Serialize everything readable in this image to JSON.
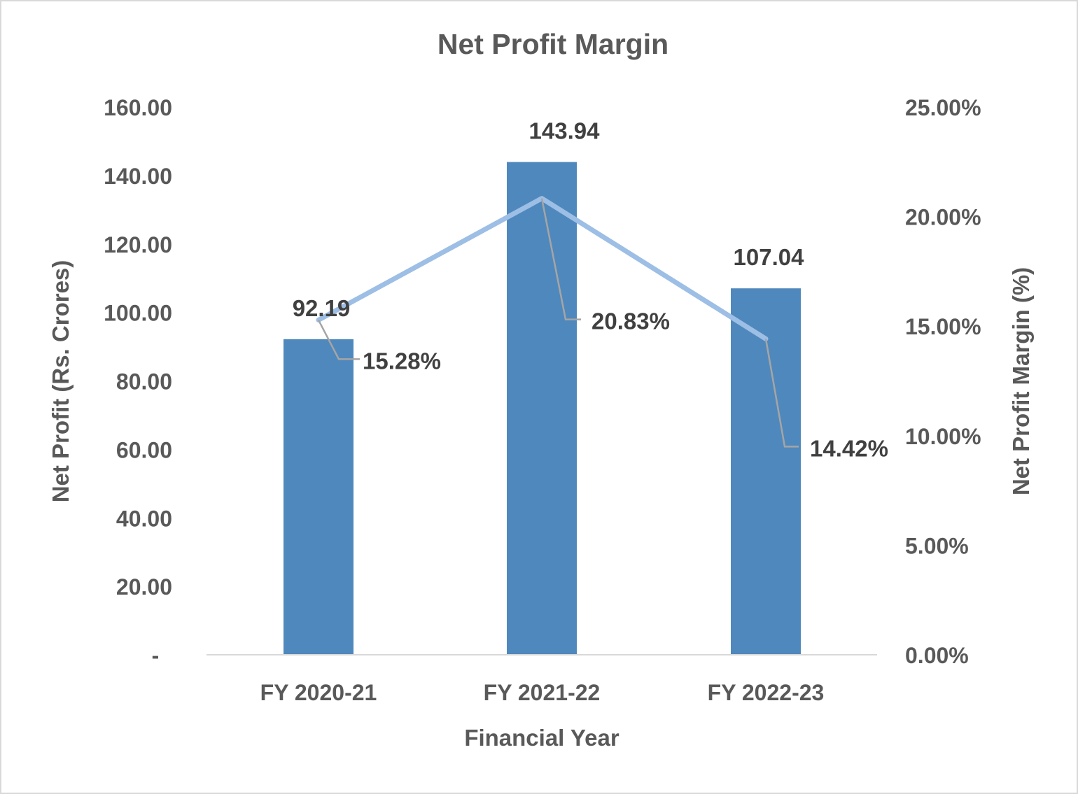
{
  "chart_data": {
    "type": "bar+line",
    "title": "Net Profit Margin",
    "xlabel": "Financial Year",
    "ylabel": "Net Profit (Rs. Crores)",
    "y2label": "Net Profit Margin (%)",
    "categories": [
      "FY 2020-21",
      "FY 2021-22",
      "FY 2022-23"
    ],
    "ylim": [
      0,
      160
    ],
    "y2lim": [
      0,
      25
    ],
    "yticks": [
      "-",
      "20.00",
      "40.00",
      "60.00",
      "80.00",
      "100.00",
      "120.00",
      "140.00",
      "160.00"
    ],
    "y2ticks": [
      "0.00%",
      "5.00%",
      "10.00%",
      "15.00%",
      "20.00%",
      "25.00%"
    ],
    "grid": false,
    "series": [
      {
        "type": "bar",
        "axis": "left",
        "values": [
          92.19,
          143.94,
          107.04
        ],
        "labels": [
          "92.19",
          "143.94",
          "107.04"
        ],
        "color": "#4F88BC"
      },
      {
        "type": "line",
        "axis": "right",
        "values": [
          15.28,
          20.83,
          14.42
        ],
        "labels": [
          "15.28%",
          "20.83%",
          "14.42%"
        ],
        "color": "#9DBEE5"
      }
    ]
  }
}
